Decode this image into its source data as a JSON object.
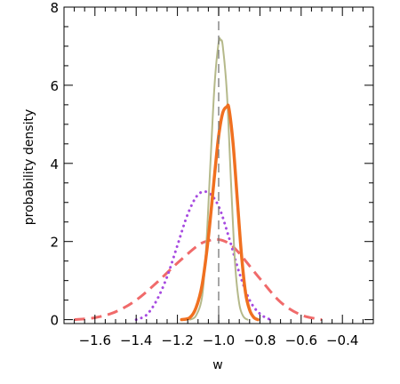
{
  "chart_data": {
    "type": "line",
    "xlabel": "w",
    "ylabel": "probability density",
    "xlim": [
      -1.75,
      -0.25
    ],
    "ylim": [
      -0.1,
      8.0
    ],
    "x_ticks": [
      -1.6,
      -1.4,
      -1.2,
      -1.0,
      -0.8,
      -0.6,
      -0.4
    ],
    "x_tick_labels": [
      "−1.6",
      "−1.4",
      "−1.2",
      "−1.0",
      "−0.8",
      "−0.6",
      "−0.4"
    ],
    "y_ticks": [
      0,
      2,
      4,
      6,
      8
    ],
    "y_tick_labels": [
      "0",
      "2",
      "4",
      "6",
      "8"
    ],
    "grid": false,
    "reference_line": {
      "x": -1.0,
      "style": "dashed",
      "color": "#777777"
    },
    "series": [
      {
        "style": "solid-thin",
        "color": "#b5b98a",
        "x": [
          -1.14,
          -1.11,
          -1.08,
          -1.06,
          -1.04,
          -1.02,
          -1.0,
          -0.99,
          -0.98,
          -0.96,
          -0.94,
          -0.92,
          -0.9,
          -0.88,
          -0.86
        ],
        "y": [
          0.0,
          0.1,
          0.6,
          1.9,
          4.0,
          6.0,
          7.1,
          7.15,
          7.0,
          5.8,
          3.5,
          1.4,
          0.4,
          0.08,
          0.0
        ]
      },
      {
        "style": "solid-thick",
        "color": "#f07020",
        "x": [
          -1.18,
          -1.14,
          -1.11,
          -1.08,
          -1.05,
          -1.02,
          -1.0,
          -0.98,
          -0.96,
          -0.95,
          -0.93,
          -0.91,
          -0.89,
          -0.87,
          -0.85,
          -0.83,
          -0.81
        ],
        "y": [
          0.0,
          0.05,
          0.3,
          0.9,
          2.1,
          3.7,
          4.7,
          5.3,
          5.45,
          5.4,
          4.5,
          3.1,
          1.7,
          0.7,
          0.25,
          0.06,
          0.0
        ]
      },
      {
        "style": "dotted",
        "color": "#a64ae0",
        "x": [
          -1.4,
          -1.35,
          -1.3,
          -1.25,
          -1.2,
          -1.15,
          -1.1,
          -1.05,
          -1.0,
          -0.95,
          -0.9,
          -0.85,
          -0.8,
          -0.75
        ],
        "y": [
          0.0,
          0.12,
          0.5,
          1.1,
          1.9,
          2.7,
          3.2,
          3.25,
          2.9,
          2.1,
          1.2,
          0.5,
          0.15,
          0.0
        ]
      },
      {
        "style": "dashed",
        "color": "#f06a6a",
        "x": [
          -1.7,
          -1.6,
          -1.5,
          -1.4,
          -1.3,
          -1.2,
          -1.1,
          -1.05,
          -1.0,
          -0.95,
          -0.9,
          -0.8,
          -0.7,
          -0.6,
          -0.5
        ],
        "y": [
          0.0,
          0.05,
          0.2,
          0.5,
          0.95,
          1.45,
          1.9,
          2.02,
          2.05,
          1.95,
          1.7,
          1.05,
          0.45,
          0.12,
          0.0
        ]
      }
    ]
  }
}
